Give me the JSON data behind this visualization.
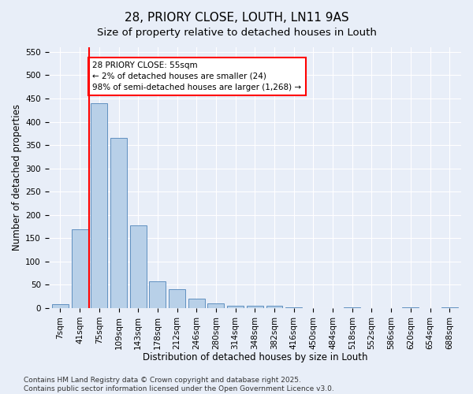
{
  "title": "28, PRIORY CLOSE, LOUTH, LN11 9AS",
  "subtitle": "Size of property relative to detached houses in Louth",
  "xlabel": "Distribution of detached houses by size in Louth",
  "ylabel": "Number of detached properties",
  "categories": [
    "7sqm",
    "41sqm",
    "75sqm",
    "109sqm",
    "143sqm",
    "178sqm",
    "212sqm",
    "246sqm",
    "280sqm",
    "314sqm",
    "348sqm",
    "382sqm",
    "416sqm",
    "450sqm",
    "484sqm",
    "518sqm",
    "552sqm",
    "586sqm",
    "620sqm",
    "654sqm",
    "688sqm"
  ],
  "values": [
    8,
    170,
    440,
    365,
    178,
    57,
    40,
    20,
    10,
    5,
    5,
    5,
    2,
    0,
    0,
    2,
    0,
    0,
    2,
    0,
    2
  ],
  "bar_color": "#b8d0e8",
  "bar_edge_color": "#6090c0",
  "vline_x": 1.5,
  "vline_color": "red",
  "annotation_box_text": "28 PRIORY CLOSE: 55sqm\n← 2% of detached houses are smaller (24)\n98% of semi-detached houses are larger (1,268) →",
  "ylim": [
    0,
    560
  ],
  "yticks": [
    0,
    50,
    100,
    150,
    200,
    250,
    300,
    350,
    400,
    450,
    500,
    550
  ],
  "background_color": "#e8eef8",
  "plot_bg_color": "#e8eef8",
  "footer_text": "Contains HM Land Registry data © Crown copyright and database right 2025.\nContains public sector information licensed under the Open Government Licence v3.0.",
  "title_fontsize": 11,
  "subtitle_fontsize": 9.5,
  "axis_label_fontsize": 8.5,
  "tick_fontsize": 7.5,
  "annotation_fontsize": 7.5,
  "footer_fontsize": 6.5
}
